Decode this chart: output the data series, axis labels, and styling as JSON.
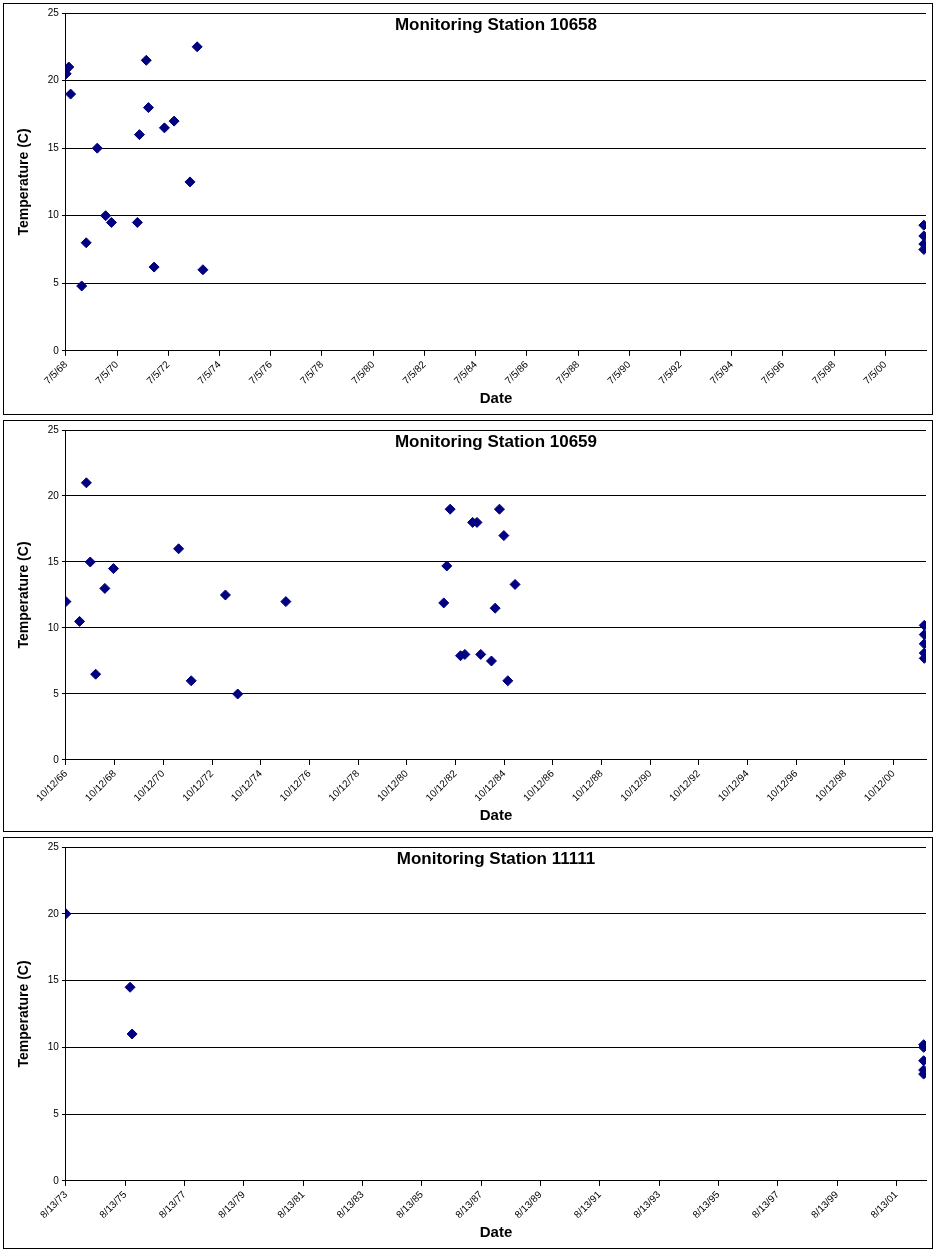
{
  "chart_data": [
    {
      "type": "scatter",
      "title": "Monitoring Station 10658",
      "xlabel": "Date",
      "ylabel": "Temperature (C)",
      "color": "#000080",
      "marker": "diamond",
      "grid": "y",
      "x": [
        "1968-07-09",
        "1968-08-15",
        "1968-09-10",
        "1969-02-15",
        "1969-04-20",
        "1969-09-25",
        "1970-01-22",
        "1970-04-15",
        "1971-04-20",
        "1971-05-20",
        "1971-08-25",
        "1971-09-25",
        "1971-12-15",
        "1972-05-10",
        "1972-09-25",
        "1973-05-10",
        "1973-08-20",
        "1973-11-10",
        "2002-01-05",
        "2002-01-05",
        "2002-01-05",
        "2002-01-05"
      ],
      "values": [
        20.5,
        21,
        19,
        4.8,
        8,
        15,
        10,
        9.5,
        9.5,
        16,
        21.5,
        18,
        6.2,
        16.5,
        17,
        12.5,
        22.5,
        6,
        9.3,
        8.5,
        7.9,
        7.5
      ],
      "xlim": [
        "1968-07-05",
        "2002-02-05"
      ],
      "ylim": [
        0,
        25
      ],
      "yticks": [
        0,
        5,
        10,
        15,
        20,
        25
      ],
      "xticks": [
        {
          "value": "1968-07-05",
          "label": "7/5/68"
        },
        {
          "value": "1970-07-05",
          "label": "7/5/70"
        },
        {
          "value": "1972-07-05",
          "label": "7/5/72"
        },
        {
          "value": "1974-07-05",
          "label": "7/5/74"
        },
        {
          "value": "1976-07-05",
          "label": "7/5/76"
        },
        {
          "value": "1978-07-05",
          "label": "7/5/78"
        },
        {
          "value": "1980-07-05",
          "label": "7/5/80"
        },
        {
          "value": "1982-07-05",
          "label": "7/5/82"
        },
        {
          "value": "1984-07-05",
          "label": "7/5/84"
        },
        {
          "value": "1986-07-05",
          "label": "7/5/86"
        },
        {
          "value": "1988-07-05",
          "label": "7/5/88"
        },
        {
          "value": "1990-07-05",
          "label": "7/5/90"
        },
        {
          "value": "1992-07-05",
          "label": "7/5/92"
        },
        {
          "value": "1994-07-05",
          "label": "7/5/94"
        },
        {
          "value": "1996-07-05",
          "label": "7/5/96"
        },
        {
          "value": "1998-07-05",
          "label": "7/5/98"
        },
        {
          "value": "2000-07-05",
          "label": "7/5/00"
        }
      ]
    },
    {
      "type": "scatter",
      "title": "Monitoring Station 10659",
      "xlabel": "Date",
      "ylabel": "Temperature (C)",
      "color": "#000080",
      "marker": "diamond",
      "grid": "y",
      "x": [
        "1966-10-12",
        "1967-05-05",
        "1967-08-15",
        "1967-10-12",
        "1968-01-01",
        "1968-05-18",
        "1968-09-25",
        "1971-05-30",
        "1971-12-05",
        "1973-05-01",
        "1973-11-01",
        "1975-10-25",
        "1982-04-20",
        "1982-06-05",
        "1982-07-25",
        "1982-12-28",
        "1983-03-03",
        "1983-06-28",
        "1983-09-01",
        "1983-10-27",
        "1984-04-05",
        "1984-05-30",
        "1984-08-03",
        "1984-10-08",
        "1984-12-06",
        "1985-03-25",
        "2002-01-15",
        "2002-01-15",
        "2002-01-15",
        "2002-01-15",
        "2002-01-15"
      ],
      "values": [
        12,
        10.5,
        21,
        15,
        6.5,
        13,
        14.5,
        16,
        6,
        12.5,
        5,
        12,
        11.9,
        14.7,
        19,
        7.9,
        8,
        18,
        18,
        8,
        7.5,
        11.5,
        19,
        17,
        6,
        13.3,
        10.2,
        9.5,
        8.8,
        8.1,
        7.7
      ],
      "xlim": [
        "1966-10-12",
        "2002-02-10"
      ],
      "ylim": [
        0,
        25
      ],
      "yticks": [
        0,
        5,
        10,
        15,
        20,
        25
      ],
      "xticks": [
        {
          "value": "1966-10-12",
          "label": "10/12/66"
        },
        {
          "value": "1968-10-12",
          "label": "10/12/68"
        },
        {
          "value": "1970-10-12",
          "label": "10/12/70"
        },
        {
          "value": "1972-10-12",
          "label": "10/12/72"
        },
        {
          "value": "1974-10-12",
          "label": "10/12/74"
        },
        {
          "value": "1976-10-12",
          "label": "10/12/76"
        },
        {
          "value": "1978-10-12",
          "label": "10/12/78"
        },
        {
          "value": "1980-10-12",
          "label": "10/12/80"
        },
        {
          "value": "1982-10-12",
          "label": "10/12/82"
        },
        {
          "value": "1984-10-12",
          "label": "10/12/84"
        },
        {
          "value": "1986-10-12",
          "label": "10/12/86"
        },
        {
          "value": "1988-10-12",
          "label": "10/12/88"
        },
        {
          "value": "1990-10-12",
          "label": "10/12/90"
        },
        {
          "value": "1992-10-12",
          "label": "10/12/92"
        },
        {
          "value": "1994-10-12",
          "label": "10/12/94"
        },
        {
          "value": "1996-10-12",
          "label": "10/12/96"
        },
        {
          "value": "1998-10-12",
          "label": "10/12/98"
        },
        {
          "value": "2000-10-12",
          "label": "10/12/00"
        }
      ]
    },
    {
      "type": "scatter",
      "title": "Monitoring Station 11111",
      "xlabel": "Date",
      "ylabel": "Temperature (C)",
      "color": "#000080",
      "marker": "diamond",
      "grid": "y",
      "x": [
        "1973-08-13",
        "1975-10-12",
        "1975-11-06",
        "2002-07-15",
        "2002-07-15",
        "2002-07-15",
        "2002-07-15",
        "2002-07-15"
      ],
      "values": [
        20,
        14.5,
        11,
        10,
        10.2,
        9,
        8.3,
        8
      ],
      "xlim": [
        "1973-08-13",
        "2002-08-13"
      ],
      "ylim": [
        0,
        25
      ],
      "yticks": [
        0,
        5,
        10,
        15,
        20,
        25
      ],
      "xticks": [
        {
          "value": "1973-08-13",
          "label": "8/13/73"
        },
        {
          "value": "1975-08-13",
          "label": "8/13/75"
        },
        {
          "value": "1977-08-13",
          "label": "8/13/77"
        },
        {
          "value": "1979-08-13",
          "label": "8/13/79"
        },
        {
          "value": "1981-08-13",
          "label": "8/13/81"
        },
        {
          "value": "1983-08-13",
          "label": "8/13/83"
        },
        {
          "value": "1985-08-13",
          "label": "8/13/85"
        },
        {
          "value": "1987-08-13",
          "label": "8/13/87"
        },
        {
          "value": "1989-08-13",
          "label": "8/13/89"
        },
        {
          "value": "1991-08-13",
          "label": "8/13/91"
        },
        {
          "value": "1993-08-13",
          "label": "8/13/93"
        },
        {
          "value": "1995-08-13",
          "label": "8/13/95"
        },
        {
          "value": "1997-08-13",
          "label": "8/13/97"
        },
        {
          "value": "1999-08-13",
          "label": "8/13/99"
        },
        {
          "value": "2001-08-13",
          "label": "8/13/01"
        }
      ]
    }
  ]
}
